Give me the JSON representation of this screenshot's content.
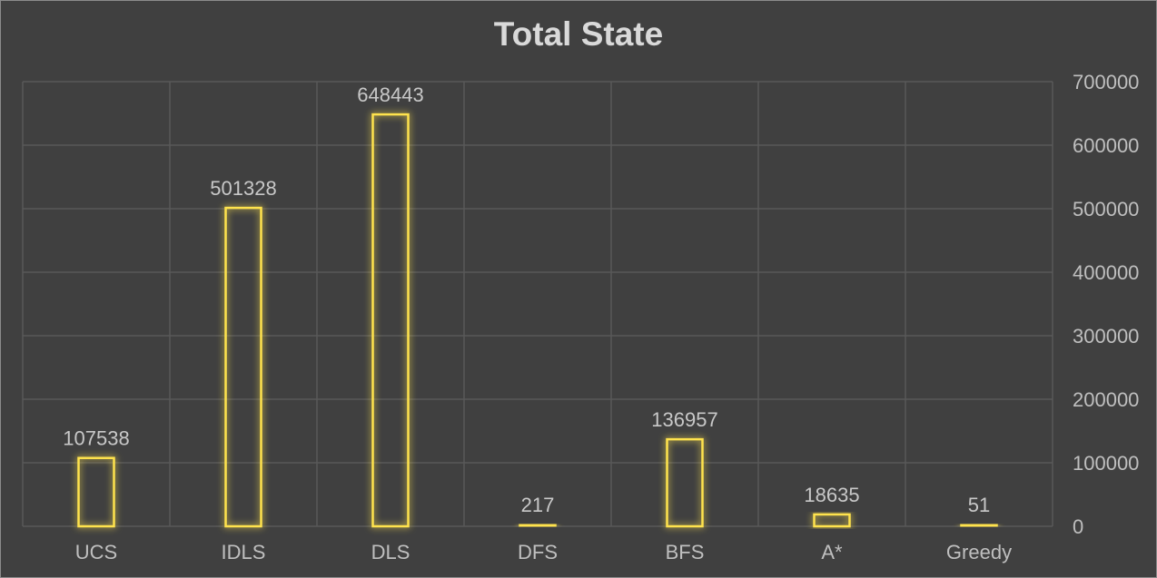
{
  "chart_data": {
    "type": "bar",
    "title": "Total State",
    "categories": [
      "UCS",
      "IDLS",
      "DLS",
      "DFS",
      "BFS",
      "A*",
      "Greedy"
    ],
    "values": [
      107538,
      501328,
      648443,
      217,
      136957,
      18635,
      51
    ],
    "data_labels": [
      "107538",
      "501328",
      "648443",
      "217",
      "136957",
      "18635",
      "51"
    ],
    "ylim": [
      0,
      700000
    ],
    "yticks": [
      "0",
      "100000",
      "200000",
      "300000",
      "400000",
      "500000",
      "600000",
      "700000"
    ],
    "y_axis_position": "right",
    "grid": true,
    "legend": "none",
    "colors": {
      "background": "#404040",
      "bar_outline": "#ffe34d",
      "bar_glow": "#d4b000",
      "grid": "#595959",
      "text": "#bfbfbf",
      "title": "#d9d9d9"
    }
  }
}
